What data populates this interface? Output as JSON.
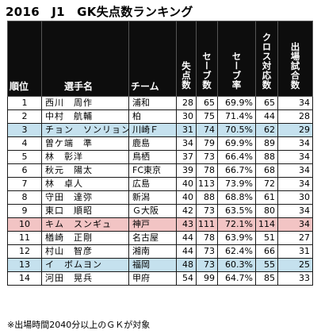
{
  "title": "2016　J1　GK失点数ランキング",
  "headers": {
    "rank": "順位",
    "player": "選手名",
    "team": "チーム",
    "goals_against": "失点数",
    "saves": "セーブ数",
    "save_rate": "セーブ率",
    "cross_handled": "クロス対応数",
    "appearances": "出場試合数"
  },
  "rows": [
    {
      "rank": "1",
      "player": "西川　周作",
      "team": "浦和",
      "ga": "28",
      "saves": "65",
      "rate": "69.9%",
      "cross": "65",
      "apps": "34",
      "highlight": ""
    },
    {
      "rank": "2",
      "player": "中村　航輔",
      "team": "柏",
      "ga": "30",
      "saves": "75",
      "rate": "71.4%",
      "cross": "44",
      "apps": "28",
      "highlight": ""
    },
    {
      "rank": "3",
      "player": "チョン　ソンリョン",
      "team": "川崎Ｆ",
      "ga": "31",
      "saves": "74",
      "rate": "70.5%",
      "cross": "62",
      "apps": "29",
      "highlight": "blue"
    },
    {
      "rank": "4",
      "player": "曽ケ端　準",
      "team": "鹿島",
      "ga": "34",
      "saves": "79",
      "rate": "69.9%",
      "cross": "89",
      "apps": "34",
      "highlight": ""
    },
    {
      "rank": "5",
      "player": "林　彰洋",
      "team": "鳥栖",
      "ga": "37",
      "saves": "73",
      "rate": "66.4%",
      "cross": "88",
      "apps": "34",
      "highlight": ""
    },
    {
      "rank": "6",
      "player": "秋元　陽太",
      "team": "FC東京",
      "ga": "39",
      "saves": "78",
      "rate": "66.7%",
      "cross": "68",
      "apps": "34",
      "highlight": ""
    },
    {
      "rank": "7",
      "player": "林　卓人",
      "team": "広島",
      "ga": "40",
      "saves": "113",
      "rate": "73.9%",
      "cross": "72",
      "apps": "34",
      "highlight": ""
    },
    {
      "rank": "8",
      "player": "守田　達弥",
      "team": "新潟",
      "ga": "40",
      "saves": "88",
      "rate": "68.8%",
      "cross": "61",
      "apps": "30",
      "highlight": ""
    },
    {
      "rank": "9",
      "player": "東口　順昭",
      "team": "Ｇ大阪",
      "ga": "42",
      "saves": "73",
      "rate": "63.5%",
      "cross": "80",
      "apps": "34",
      "highlight": ""
    },
    {
      "rank": "10",
      "player": "キム　スンギュ",
      "team": "神戸",
      "ga": "43",
      "saves": "111",
      "rate": "72.1%",
      "cross": "114",
      "apps": "34",
      "highlight": "red"
    },
    {
      "rank": "11",
      "player": "楢崎　正剛",
      "team": "名古屋",
      "ga": "44",
      "saves": "78",
      "rate": "63.9%",
      "cross": "51",
      "apps": "27",
      "highlight": ""
    },
    {
      "rank": "12",
      "player": "村山　智彦",
      "team": "湘南",
      "ga": "44",
      "saves": "73",
      "rate": "62.4%",
      "cross": "66",
      "apps": "31",
      "highlight": ""
    },
    {
      "rank": "13",
      "player": "イ　ボムヨン",
      "team": "福岡",
      "ga": "48",
      "saves": "73",
      "rate": "60.3%",
      "cross": "55",
      "apps": "25",
      "highlight": "blue"
    },
    {
      "rank": "14",
      "player": "河田　晃兵",
      "team": "甲府",
      "ga": "54",
      "saves": "99",
      "rate": "64.7%",
      "cross": "85",
      "apps": "33",
      "highlight": ""
    }
  ],
  "footnote": "※出場時間2040分以上のＧＫが対象",
  "colors": {
    "header_bg": "#0d0d0d",
    "highlight_blue": "#c5e1ee",
    "highlight_red": "#f2c4c4"
  }
}
